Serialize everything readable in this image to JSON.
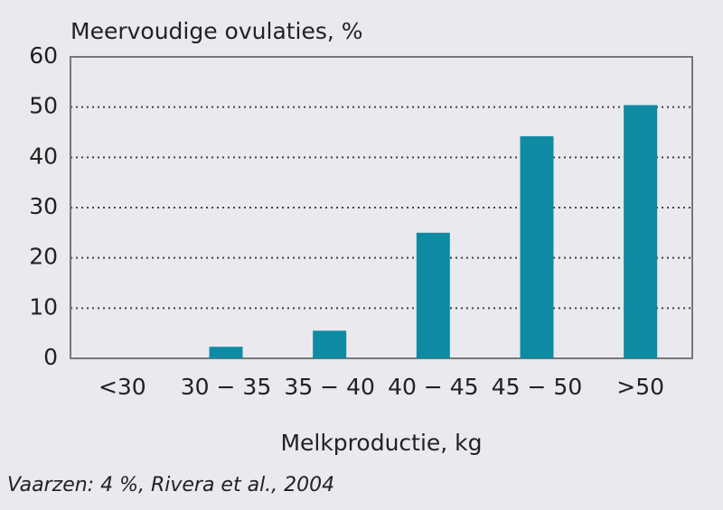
{
  "chart_data": {
    "type": "bar",
    "title": "Meervoudige  ovulaties, %",
    "categories": [
      "<30",
      "30 − 35",
      "35 − 40",
      "40 − 45",
      "45 − 50",
      ">50"
    ],
    "values": [
      0,
      2.3,
      5.5,
      25,
      44.2,
      50.4
    ],
    "color": "#0f8aa3",
    "ylim": [
      0,
      60
    ],
    "yticks": [
      0,
      10,
      20,
      30,
      40,
      50,
      60
    ],
    "grid": true,
    "x_label": "Melkproductie, kg",
    "note": "Vaarzen: 4 %, Rivera et al., 2004"
  }
}
